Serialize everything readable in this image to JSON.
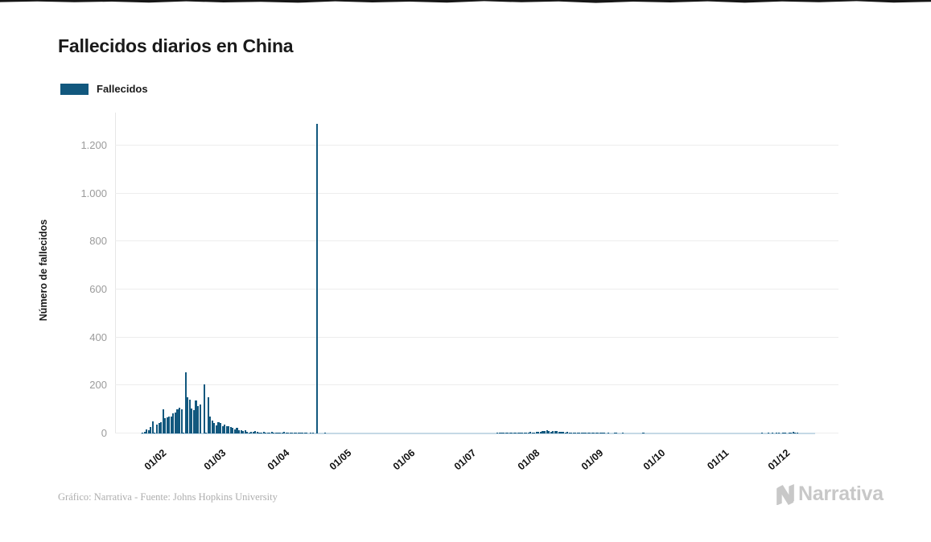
{
  "title": "Fallecidos diarios en China",
  "legend": {
    "label": "Fallecidos",
    "color": "#12587e"
  },
  "y_axis": {
    "title": "Número de fallecidos",
    "tick_labels": [
      "0",
      "200",
      "400",
      "600",
      "800",
      "1.000",
      "1.200"
    ],
    "tick_values": [
      0,
      200,
      400,
      600,
      800,
      1000,
      1200
    ]
  },
  "x_axis": {
    "tick_labels": [
      "01/02",
      "01/03",
      "01/04",
      "01/05",
      "01/06",
      "01/07",
      "01/08",
      "01/09",
      "01/10",
      "01/11",
      "01/12"
    ]
  },
  "footer": {
    "credit": "Gráfico: Narrativa - Fuente: Johns Hopkins University",
    "brand": "Narrativa"
  },
  "colors": {
    "bar": "#12587e",
    "grid": "#ededed",
    "y_tick_text": "#9b9b9b",
    "x_tick_text": "#111111",
    "title_text": "#1a1a1a",
    "footer_text": "#aeaeae",
    "brand_gray": "#c8c8c8"
  },
  "chart_data": {
    "type": "bar",
    "title": "Fallecidos diarios en China",
    "ylabel": "Número de fallecidos",
    "ylim": [
      0,
      1300
    ],
    "grid": true,
    "legend_position": "top-left",
    "x_tick_labels": [
      "01/02",
      "01/03",
      "01/04",
      "01/05",
      "01/06",
      "01/07",
      "01/08",
      "01/09",
      "01/10",
      "01/11",
      "01/12"
    ],
    "series": [
      {
        "name": "Fallecidos",
        "frequency": "daily",
        "start_date": "23/01",
        "values": [
          1,
          8,
          16,
          14,
          26,
          49,
          2,
          38,
          42,
          46,
          102,
          64,
          66,
          72,
          70,
          85,
          87,
          100,
          107,
          100,
          5,
          254,
          152,
          142,
          103,
          98,
          139,
          113,
          122,
          0,
          205,
          2,
          150,
          71,
          52,
          44,
          35,
          47,
          42,
          31,
          38,
          31,
          30,
          28,
          22,
          17,
          22,
          14,
          13,
          11,
          13,
          8,
          3,
          7,
          6,
          9,
          7,
          4,
          5,
          6,
          5,
          3,
          5,
          6,
          3,
          5,
          4,
          3,
          1,
          6,
          4,
          1,
          4,
          3,
          2,
          2,
          2,
          2,
          1,
          2,
          1,
          0,
          1,
          1,
          0,
          1290,
          0,
          0,
          0,
          1,
          0,
          0,
          0,
          0,
          0,
          0,
          0,
          0,
          0,
          0,
          0,
          0,
          0,
          0,
          0,
          0,
          0,
          0,
          0,
          0,
          0,
          0,
          0,
          0,
          0,
          0,
          0,
          0,
          0,
          0,
          0,
          0,
          0,
          0,
          0,
          0,
          0,
          0,
          0,
          0,
          0,
          0,
          0,
          0,
          0,
          0,
          0,
          0,
          0,
          0,
          0,
          0,
          0,
          0,
          0,
          0,
          0,
          0,
          0,
          0,
          0,
          0,
          0,
          0,
          0,
          0,
          0,
          0,
          0,
          0,
          0,
          0,
          0,
          0,
          0,
          0,
          0,
          0,
          0,
          0,
          0,
          0,
          0,
          1,
          1,
          2,
          1,
          2,
          3,
          2,
          2,
          3,
          3,
          4,
          5,
          4,
          3,
          4,
          5,
          6,
          5,
          5,
          6,
          8,
          7,
          9,
          10,
          12,
          9,
          8,
          10,
          11,
          9,
          7,
          8,
          6,
          5,
          6,
          5,
          4,
          3,
          4,
          3,
          3,
          2,
          2,
          3,
          2,
          1,
          2,
          1,
          1,
          2,
          1,
          1,
          2,
          0,
          1,
          0,
          0,
          1,
          3,
          0,
          0,
          1,
          0,
          0,
          0,
          0,
          0,
          0,
          0,
          0,
          0,
          1,
          0,
          0,
          0,
          0,
          0,
          0,
          0,
          0,
          0,
          0,
          0,
          0,
          0,
          0,
          0,
          0,
          0,
          0,
          0,
          0,
          0,
          0,
          0,
          0,
          0,
          0,
          0,
          0,
          0,
          0,
          0,
          0,
          0,
          0,
          0,
          0,
          0,
          0,
          0,
          0,
          0,
          0,
          0,
          0,
          0,
          0,
          0,
          0,
          0,
          0,
          0,
          0,
          0,
          0,
          0,
          0,
          0,
          1,
          0,
          0,
          1,
          0,
          1,
          0,
          1,
          1,
          0,
          1,
          1,
          0,
          1,
          1,
          6,
          2,
          1,
          0,
          0,
          0
        ]
      }
    ],
    "notable_points": [
      {
        "date": "13/02",
        "value": 254
      },
      {
        "date": "17/04",
        "value": 1290
      }
    ]
  }
}
